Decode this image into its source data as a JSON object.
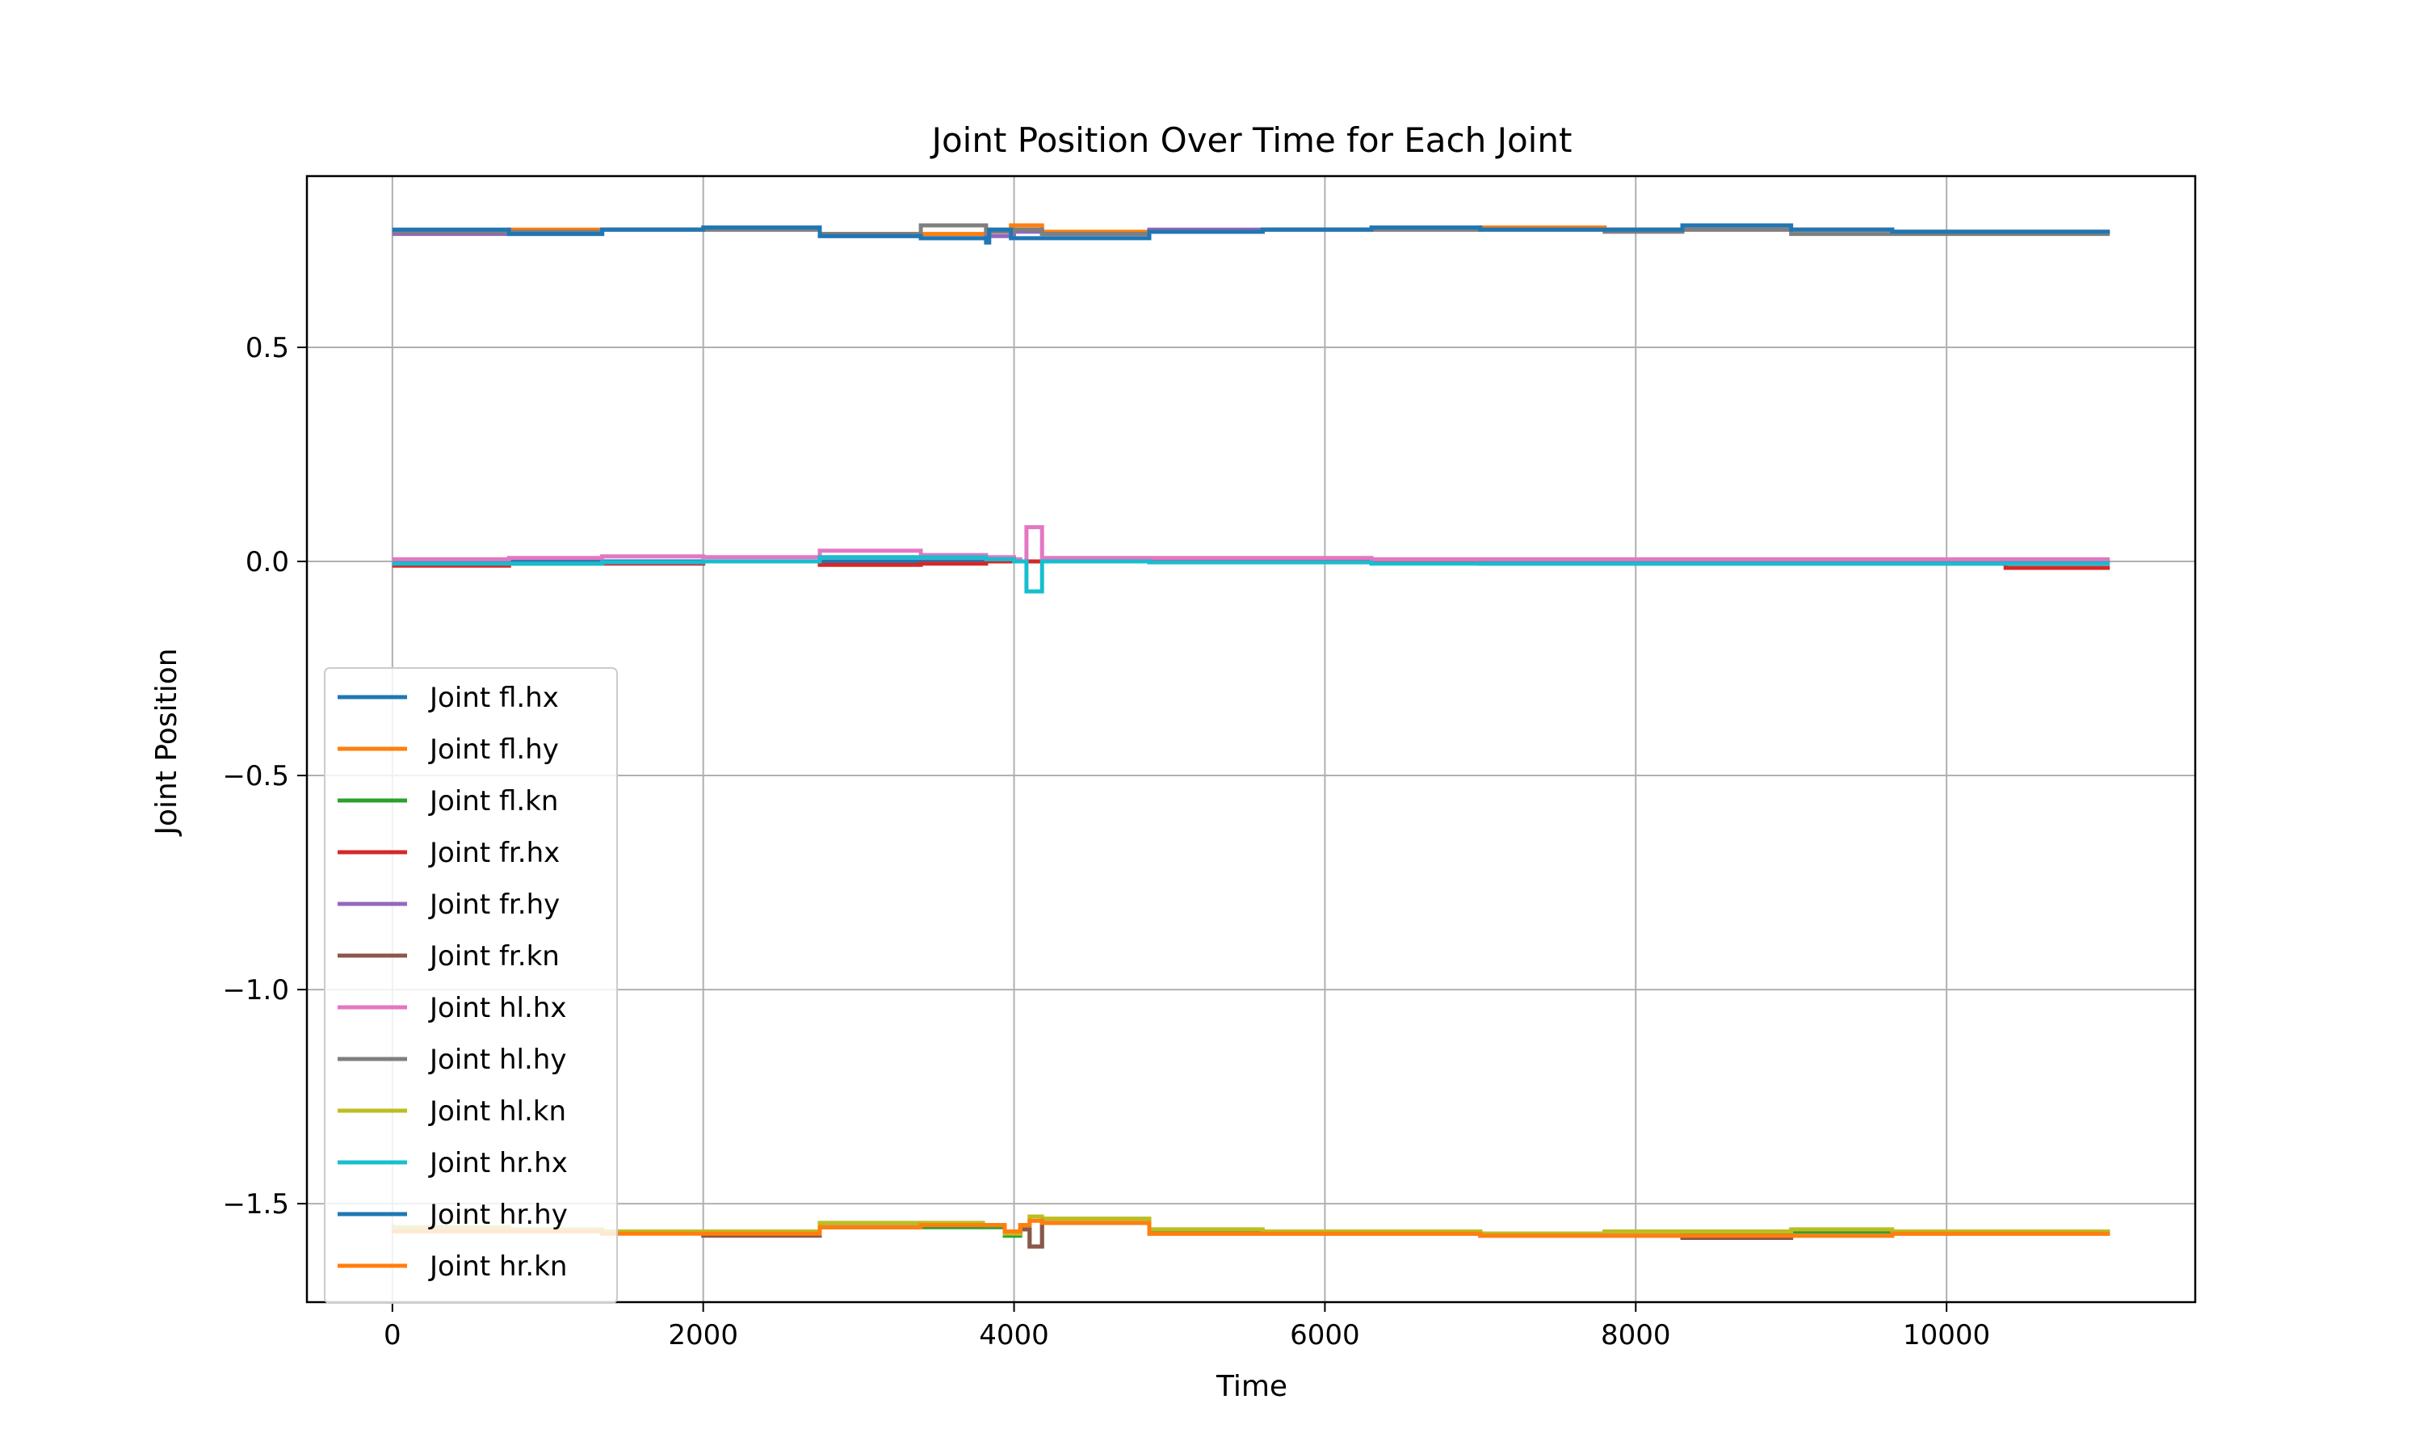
{
  "chart_data": {
    "type": "line",
    "title": "Joint Position Over Time for Each Joint",
    "xlabel": "Time",
    "ylabel": "Joint Position",
    "xlim": [
      -550,
      11600
    ],
    "ylim": [
      -1.73,
      0.9
    ],
    "xticks": [
      0,
      2000,
      4000,
      6000,
      8000,
      10000
    ],
    "xtick_labels": [
      "0",
      "2000",
      "4000",
      "6000",
      "8000",
      "10000"
    ],
    "yticks": [
      0.5,
      0.0,
      -0.5,
      -1.0,
      -1.5
    ],
    "ytick_labels": [
      "0.5",
      "0.0",
      "−0.5",
      "−1.0",
      "−1.5"
    ],
    "grid": true,
    "legend_position": "lower-left",
    "line_style": "steps-post",
    "series": [
      {
        "name": "Joint fl.hx",
        "color": "#1f77b4",
        "x": [
          0,
          750,
          1350,
          2000,
          2750,
          3400,
          3820,
          4000,
          4180,
          4870,
          5600,
          6300,
          7000,
          7800,
          8300,
          9000,
          9650,
          11050
        ],
        "y": [
          0.0,
          0.0,
          0.0,
          0.0,
          0.0,
          0.0,
          0.0,
          0.0,
          0.0,
          0.0,
          0.0,
          0.0,
          0.0,
          0.0,
          0.0,
          0.0,
          0.0,
          0.0
        ]
      },
      {
        "name": "Joint fl.hy",
        "color": "#ff7f0e",
        "x": [
          0,
          750,
          1350,
          2000,
          2750,
          3400,
          3820,
          3980,
          4180,
          4870,
          5600,
          6300,
          7000,
          7800,
          8300,
          9000,
          9650,
          11050
        ],
        "y": [
          0.77,
          0.775,
          0.775,
          0.775,
          0.765,
          0.765,
          0.775,
          0.785,
          0.77,
          0.77,
          0.775,
          0.775,
          0.78,
          0.775,
          0.775,
          0.775,
          0.77,
          0.77
        ]
      },
      {
        "name": "Joint fl.kn",
        "color": "#2ca02c",
        "x": [
          0,
          750,
          1350,
          2000,
          2750,
          3400,
          3800,
          3940,
          4040,
          4100,
          4180,
          4870,
          5600,
          6300,
          7000,
          7800,
          8300,
          9000,
          9650,
          11050
        ],
        "y": [
          -1.565,
          -1.565,
          -1.565,
          -1.57,
          -1.555,
          -1.555,
          -1.555,
          -1.575,
          -1.56,
          -1.6,
          -1.545,
          -1.565,
          -1.565,
          -1.565,
          -1.57,
          -1.565,
          -1.57,
          -1.565,
          -1.565,
          -1.565
        ]
      },
      {
        "name": "Joint fr.hx",
        "color": "#d62728",
        "x": [
          0,
          750,
          1350,
          2000,
          2750,
          3400,
          3820,
          4000,
          4180,
          4870,
          5600,
          6300,
          7000,
          7800,
          8300,
          9000,
          9650,
          10380,
          11050
        ],
        "y": [
          -0.01,
          -0.005,
          -0.005,
          0.0,
          -0.008,
          -0.005,
          0.0,
          0.0,
          0.0,
          0.0,
          0.0,
          0.0,
          -0.005,
          -0.005,
          -0.005,
          -0.005,
          -0.005,
          -0.015,
          -0.015
        ]
      },
      {
        "name": "Joint fr.hy",
        "color": "#9467bd",
        "x": [
          0,
          750,
          1350,
          2000,
          2750,
          3400,
          3820,
          4000,
          4180,
          4870,
          5600,
          6300,
          7000,
          7800,
          8300,
          9000,
          9650,
          11050
        ],
        "y": [
          0.765,
          0.765,
          0.775,
          0.775,
          0.76,
          0.755,
          0.76,
          0.77,
          0.765,
          0.775,
          0.775,
          0.775,
          0.775,
          0.775,
          0.775,
          0.775,
          0.77,
          0.77
        ]
      },
      {
        "name": "Joint fr.kn",
        "color": "#8c564b",
        "x": [
          0,
          750,
          1350,
          2000,
          2750,
          3400,
          3800,
          3940,
          4040,
          4100,
          4180,
          4870,
          5600,
          6300,
          7000,
          7800,
          8300,
          9000,
          9650,
          11050
        ],
        "y": [
          -1.555,
          -1.565,
          -1.565,
          -1.575,
          -1.555,
          -1.55,
          -1.55,
          -1.57,
          -1.56,
          -1.6,
          -1.545,
          -1.57,
          -1.57,
          -1.57,
          -1.575,
          -1.575,
          -1.58,
          -1.575,
          -1.57,
          -1.57
        ]
      },
      {
        "name": "Joint hl.hx",
        "color": "#e377c2",
        "x": [
          0,
          750,
          1350,
          2000,
          2750,
          3400,
          3820,
          4000,
          4040,
          4080,
          4180,
          4870,
          5600,
          6300,
          7000,
          7800,
          8300,
          9000,
          9650,
          11050
        ],
        "y": [
          0.005,
          0.008,
          0.012,
          0.01,
          0.025,
          0.015,
          0.01,
          0.005,
          0.0,
          0.08,
          0.008,
          0.008,
          0.008,
          0.005,
          0.005,
          0.005,
          0.005,
          0.005,
          0.005,
          0.005
        ]
      },
      {
        "name": "Joint hl.hy",
        "color": "#7f7f7f",
        "x": [
          0,
          750,
          1350,
          2000,
          2750,
          3400,
          3820,
          4000,
          4180,
          4870,
          5600,
          6300,
          7000,
          7800,
          8300,
          9000,
          9650,
          11050
        ],
        "y": [
          0.77,
          0.77,
          0.775,
          0.775,
          0.765,
          0.785,
          0.77,
          0.775,
          0.765,
          0.77,
          0.775,
          0.775,
          0.775,
          0.77,
          0.775,
          0.765,
          0.765,
          0.765
        ]
      },
      {
        "name": "Joint hl.kn",
        "color": "#bcbd22",
        "x": [
          0,
          750,
          1350,
          2000,
          2750,
          3400,
          3800,
          3940,
          4040,
          4100,
          4180,
          4870,
          5600,
          6300,
          7000,
          7800,
          8300,
          9000,
          9650,
          11050
        ],
        "y": [
          -1.555,
          -1.56,
          -1.565,
          -1.565,
          -1.545,
          -1.545,
          -1.55,
          -1.57,
          -1.55,
          -1.53,
          -1.535,
          -1.56,
          -1.565,
          -1.565,
          -1.57,
          -1.565,
          -1.565,
          -1.56,
          -1.565,
          -1.565
        ]
      },
      {
        "name": "Joint hr.hx",
        "color": "#17becf",
        "x": [
          0,
          750,
          1350,
          2000,
          2750,
          3400,
          3820,
          4000,
          4040,
          4080,
          4180,
          4870,
          5600,
          6300,
          7000,
          7800,
          8300,
          9000,
          9650,
          11050
        ],
        "y": [
          -0.005,
          -0.005,
          -0.002,
          0.0,
          0.01,
          0.01,
          0.005,
          0.0,
          0.0,
          -0.07,
          0.0,
          -0.002,
          -0.002,
          -0.005,
          -0.005,
          -0.005,
          -0.005,
          -0.005,
          -0.005,
          -0.005
        ]
      },
      {
        "name": "Joint hr.hy",
        "color": "#1f77b4",
        "x": [
          0,
          750,
          1350,
          2000,
          2750,
          3400,
          3800,
          3820,
          3840,
          3880,
          3980,
          4040,
          4180,
          4870,
          5600,
          6300,
          7000,
          7800,
          8300,
          9000,
          9650,
          11050
        ],
        "y": [
          0.775,
          0.765,
          0.775,
          0.78,
          0.76,
          0.755,
          0.755,
          0.745,
          0.775,
          0.775,
          0.755,
          0.755,
          0.755,
          0.77,
          0.775,
          0.78,
          0.775,
          0.775,
          0.785,
          0.775,
          0.77,
          0.77
        ]
      },
      {
        "name": "Joint hr.kn",
        "color": "#ff7f0e",
        "x": [
          0,
          750,
          1350,
          2000,
          2750,
          3400,
          3800,
          3940,
          4040,
          4100,
          4180,
          4870,
          5600,
          6300,
          7000,
          7800,
          8300,
          9000,
          9650,
          11050
        ],
        "y": [
          -1.565,
          -1.565,
          -1.57,
          -1.57,
          -1.555,
          -1.55,
          -1.55,
          -1.565,
          -1.55,
          -1.54,
          -1.545,
          -1.57,
          -1.57,
          -1.57,
          -1.575,
          -1.575,
          -1.575,
          -1.575,
          -1.57,
          -1.57
        ]
      }
    ]
  }
}
